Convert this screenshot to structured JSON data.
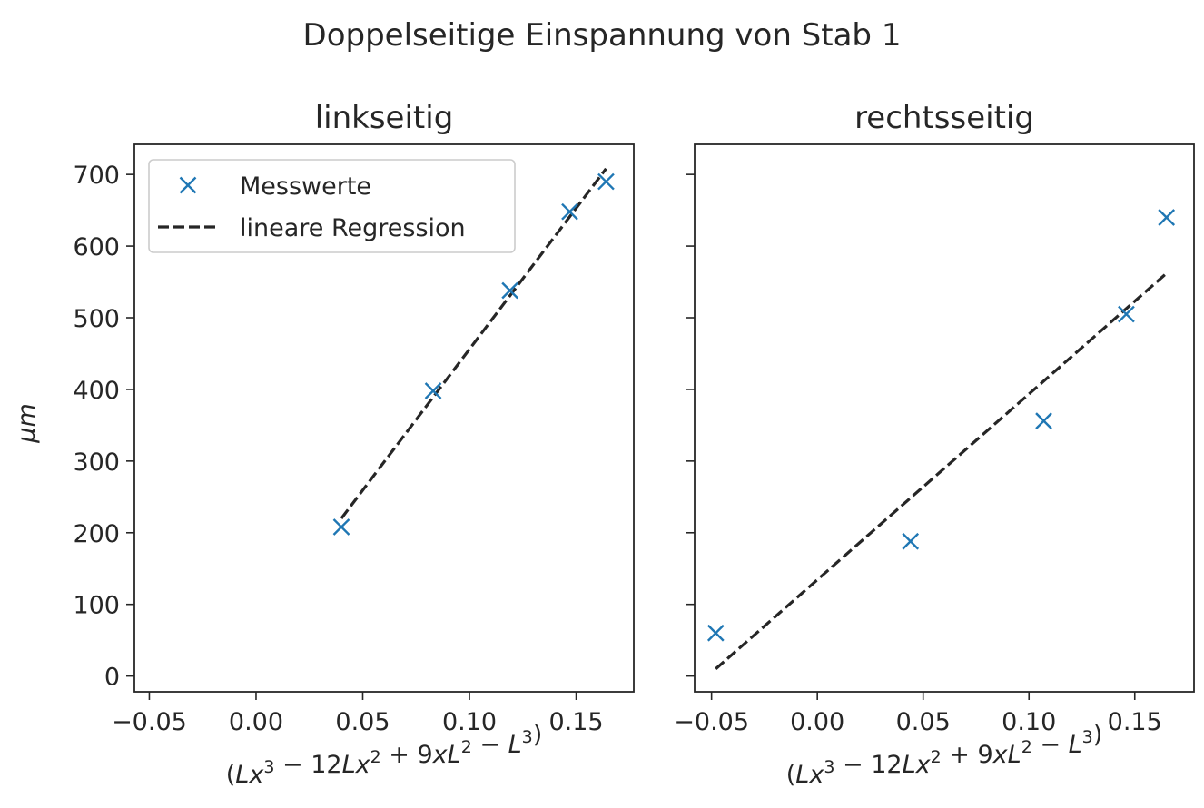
{
  "figure": {
    "suptitle": "Doppelseitige Einspannung von Stab 1",
    "xlabel_math": {
      "open": "(",
      "t1": "Lx",
      "e1": "3",
      "m1": " − 12",
      "t2": "Lx",
      "e2": "2",
      "m2": " + 9",
      "t3": "xL",
      "e3": "2",
      "m3": " − ",
      "t4": "L",
      "e4": "3",
      "close": ")"
    },
    "ylabel_text": "μm"
  },
  "legend": {
    "scatter_label": "Messwerte",
    "line_label": "lineare Regression"
  },
  "colors": {
    "scatter": "#1f77b4",
    "regression": "#262626"
  },
  "chart_data": [
    {
      "type": "scatter",
      "title": "linkseitig",
      "xlabel": "(Lx³ − 12Lx² + 9xL² − L³)",
      "ylabel": "μm",
      "xlim": [
        -0.057,
        0.177
      ],
      "ylim": [
        -22,
        742
      ],
      "xticks": [
        -0.05,
        0.0,
        0.05,
        0.1,
        0.15
      ],
      "xtick_labels": [
        "−0.05",
        "0.00",
        "0.05",
        "0.10",
        "0.15"
      ],
      "yticks": [
        0,
        100,
        200,
        300,
        400,
        500,
        600,
        700
      ],
      "ytick_labels": [
        "0",
        "100",
        "200",
        "300",
        "400",
        "500",
        "600",
        "700"
      ],
      "grid": false,
      "legend_position": "upper-left",
      "series": [
        {
          "name": "Messwerte",
          "marker": "x",
          "x": [
            0.04,
            0.083,
            0.119,
            0.147,
            0.164
          ],
          "y": [
            208,
            398,
            538,
            648,
            690
          ]
        },
        {
          "name": "lineare Regression",
          "style": "dashed",
          "x": [
            0.04,
            0.164
          ],
          "y": [
            220,
            708
          ]
        }
      ]
    },
    {
      "type": "scatter",
      "title": "rechtsseitig",
      "xlabel": "(Lx³ − 12Lx² + 9xL² − L³)",
      "xlim": [
        -0.058,
        0.178
      ],
      "ylim": [
        -22,
        742
      ],
      "xticks": [
        -0.05,
        0.0,
        0.05,
        0.1,
        0.15
      ],
      "xtick_labels": [
        "−0.05",
        "0.00",
        "0.05",
        "0.10",
        "0.15"
      ],
      "yticks": [
        0,
        100,
        200,
        300,
        400,
        500,
        600,
        700
      ],
      "ytick_labels_hidden": true,
      "grid": false,
      "series": [
        {
          "name": "Messwerte",
          "marker": "x",
          "x": [
            -0.048,
            0.044,
            0.107,
            0.146,
            0.165
          ],
          "y": [
            60,
            188,
            356,
            505,
            640
          ]
        },
        {
          "name": "lineare Regression",
          "style": "dashed",
          "x": [
            -0.048,
            0.165
          ],
          "y": [
            10,
            562
          ]
        }
      ]
    }
  ]
}
